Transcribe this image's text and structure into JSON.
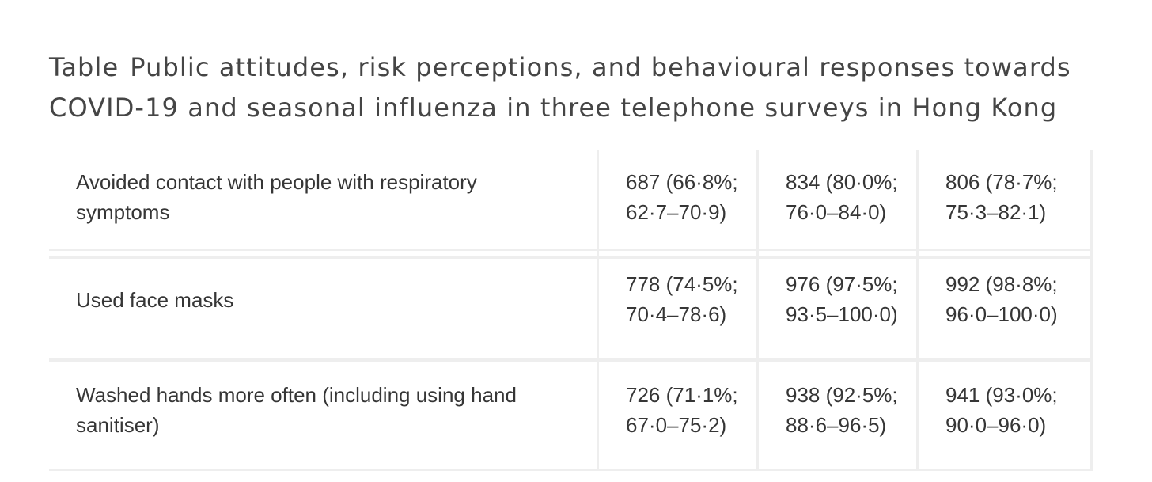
{
  "caption": {
    "label": "Table",
    "title": "Public attitudes, risk perceptions, and behavioural responses towards COVID-19 and seasonal influenza in three telephone surveys in Hong Kong"
  },
  "rows": [
    {
      "behaviour": "Avoided contact with people with respiratory symptoms",
      "survey1": {
        "count": "687 (66·8%;",
        "ci": "62·7–70·9)"
      },
      "survey2": {
        "count": "834 (80·0%;",
        "ci": "76·0–84·0)"
      },
      "survey3": {
        "count": "806 (78·7%;",
        "ci": "75·3–82·1)"
      }
    },
    {
      "behaviour": "Used face masks",
      "survey1": {
        "count": "778 (74·5%;",
        "ci": "70·4–78·6)"
      },
      "survey2": {
        "count": "976 (97·5%;",
        "ci": "93·5–100·0)"
      },
      "survey3": {
        "count": "992 (98·8%;",
        "ci": "96·0–100·0)"
      }
    },
    {
      "behaviour": "Washed hands more often (including using hand sanitiser)",
      "survey1": {
        "count": "726 (71·1%;",
        "ci": "67·0–75·2)"
      },
      "survey2": {
        "count": "938 (92·5%;",
        "ci": "88·6–96·5)"
      },
      "survey3": {
        "count": "941 (93·0%;",
        "ci": "90·0–96·0)"
      }
    }
  ]
}
